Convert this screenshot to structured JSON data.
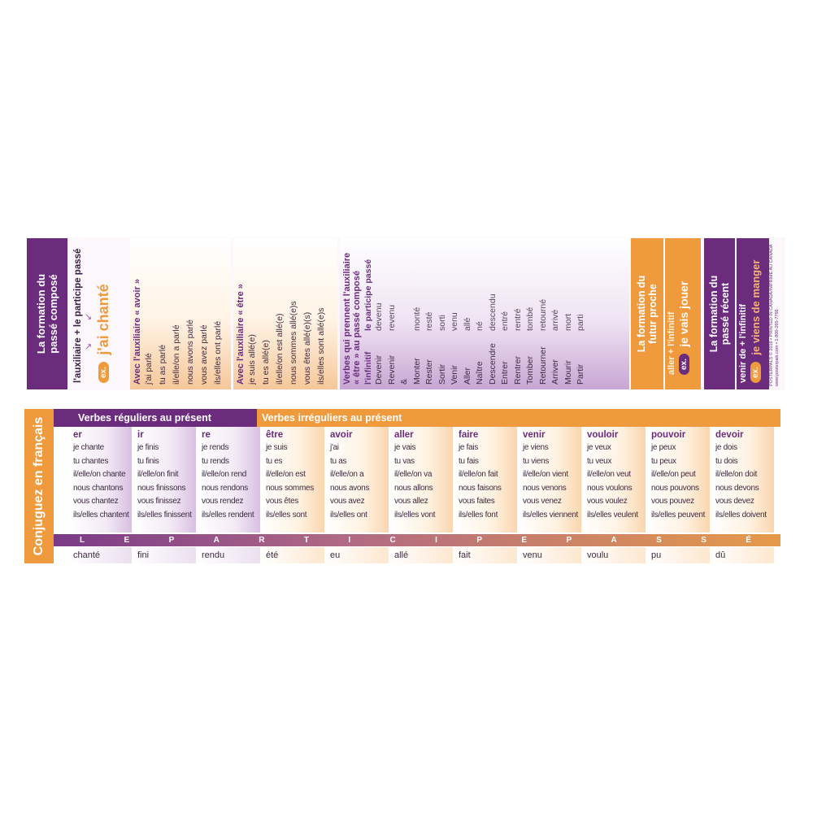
{
  "passe_compose": {
    "title_line1": "La formation du",
    "title_line2": "passé composé",
    "formula": "l'auxiliaire + le participe passé",
    "ex_label": "ex.",
    "example": "j'ai chanté"
  },
  "avoir_block": {
    "title": "Avec l'auxiliaire « avoir »",
    "lines": [
      "j'ai parlé",
      "tu as parlé",
      "il/elle/on a parlé",
      "nous avons parlé",
      "vous avez parlé",
      "ils/elles ont parlé"
    ]
  },
  "etre_block": {
    "title": "Avec l'auxiliaire « être »",
    "lines": [
      "je suis allé(e)",
      "tu es allé(e)",
      "il/elle/on est allé(e)",
      "nous sommes allé(e)s",
      "vous êtes allé(e)(s)",
      "ils/elles sont allé(e)s"
    ]
  },
  "etre_verbs": {
    "title_line1": "Verbes qui prennent l'auxiliaire",
    "title_line2": "« être » au passé composé",
    "col_infinitif": "l'infinitif",
    "col_participe": "le participe passé",
    "pairs": [
      [
        "Devenir",
        "devenu"
      ],
      [
        "Revenir",
        "revenu"
      ],
      [
        "&",
        ""
      ],
      [
        "Monter",
        "monté"
      ],
      [
        "Rester",
        "resté"
      ],
      [
        "Sortir",
        "sorti"
      ],
      [
        "",
        ""
      ],
      [
        "Venir",
        "venu"
      ],
      [
        "Aller",
        "allé"
      ],
      [
        "Naître",
        "né"
      ],
      [
        "Descendre",
        "descendu"
      ],
      [
        "Entrer",
        "entré"
      ],
      [
        "Rentrer",
        "rentré"
      ],
      [
        "Tomber",
        "tombé"
      ],
      [
        "Retourner",
        "retourné"
      ],
      [
        "Arriver",
        "arrivé"
      ],
      [
        "Mourir",
        "mort"
      ],
      [
        "Partir",
        "parti"
      ]
    ]
  },
  "futur_proche": {
    "title_line1": "La formation du",
    "title_line2": "futur proche",
    "formula": "aller + l'infinitif",
    "ex_label": "ex.",
    "example": "je vais jouer"
  },
  "passe_recent": {
    "title_line1": "La formation du",
    "title_line2": "passé récent",
    "formula": "venir de + l'infinitif",
    "ex_label": "ex.",
    "example": "je viens de manger"
  },
  "credit": {
    "line1": "POSTERPALS © 2016 • PRINTED IN CANADA/IMPRIMÉ AU CANADA",
    "line2": "www.posterpals.com • 1-800-265-7766"
  },
  "conjugaison": {
    "sidebar_title": "Conjuguez en français",
    "header_regular": "Verbes réguliers au présent",
    "header_irregular": "Verbes irréguliers au présent",
    "participe_letters": [
      "L",
      "E",
      "P",
      "A",
      "R",
      "T",
      "I",
      "C",
      "I",
      "P",
      "E",
      "P",
      "A",
      "S",
      "S",
      "É"
    ],
    "verbs": [
      {
        "head": "er",
        "type": "reg",
        "lines": [
          "je chante",
          "tu chantes",
          "il/elle/on chante",
          "nous chantons",
          "vous chantez",
          "ils/elles chantent"
        ],
        "pp": "chanté"
      },
      {
        "head": "ir",
        "type": "reg",
        "lines": [
          "je finis",
          "tu finis",
          "il/elle/on finit",
          "nous finissons",
          "vous finissez",
          "ils/elles finissent"
        ],
        "pp": "fini"
      },
      {
        "head": "re",
        "type": "reg",
        "lines": [
          "je rends",
          "tu rends",
          "il/elle/on rend",
          "nous rendons",
          "vous rendez",
          "ils/elles rendent"
        ],
        "pp": "rendu"
      },
      {
        "head": "être",
        "type": "irr",
        "lines": [
          "je suis",
          "tu es",
          "il/elle/on est",
          "nous sommes",
          "vous êtes",
          "ils/elles sont"
        ],
        "pp": "été"
      },
      {
        "head": "avoir",
        "type": "irr",
        "lines": [
          "j'ai",
          "tu as",
          "il/elle/on a",
          "nous avons",
          "vous avez",
          "ils/elles ont"
        ],
        "pp": "eu"
      },
      {
        "head": "aller",
        "type": "irr",
        "lines": [
          "je vais",
          "tu vas",
          "il/elle/on va",
          "nous allons",
          "vous allez",
          "ils/elles vont"
        ],
        "pp": "allé"
      },
      {
        "head": "faire",
        "type": "irr",
        "lines": [
          "je fais",
          "tu fais",
          "il/elle/on fait",
          "nous faisons",
          "vous faites",
          "ils/elles font"
        ],
        "pp": "fait"
      },
      {
        "head": "venir",
        "type": "irr",
        "lines": [
          "je viens",
          "tu viens",
          "il/elle/on vient",
          "nous venons",
          "vous venez",
          "ils/elles viennent"
        ],
        "pp": "venu"
      },
      {
        "head": "vouloir",
        "type": "irr",
        "lines": [
          "je veux",
          "tu veux",
          "il/elle/on veut",
          "nous voulons",
          "vous voulez",
          "ils/elles veulent"
        ],
        "pp": "voulu"
      },
      {
        "head": "pouvoir",
        "type": "irr",
        "lines": [
          "je peux",
          "tu peux",
          "il/elle/on peut",
          "nous pouvons",
          "vous pouvez",
          "ils/elles peuvent"
        ],
        "pp": "pu"
      },
      {
        "head": "devoir",
        "type": "irr",
        "lines": [
          "je dois",
          "tu dois",
          "il/elle/on doit",
          "nous devons",
          "vous devez",
          "ils/elles doivent"
        ],
        "pp": "dû"
      }
    ]
  }
}
